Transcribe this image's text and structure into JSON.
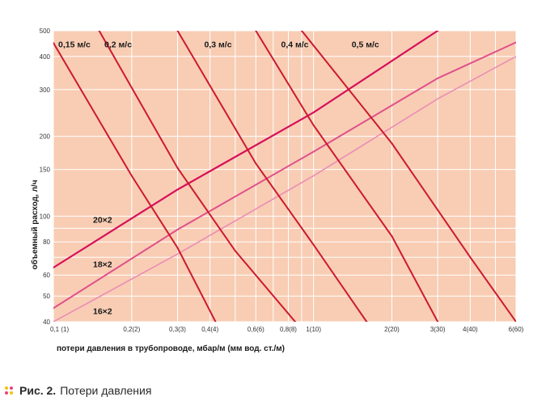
{
  "chart_data": {
    "type": "line",
    "scale": "log-log",
    "background_color": "#f8cdb4",
    "grid": true,
    "grid_color": "#ffffff",
    "xlabel": "потери давления в трубопроводе, мбар/м (мм вод. ст./м)",
    "ylabel": "объемный расход, л/ч",
    "xlim": [
      0.1,
      6
    ],
    "ylim": [
      40,
      500
    ],
    "x_ticks": [
      {
        "value": 0.1,
        "label": "0,1 (1)"
      },
      {
        "value": 0.2,
        "label": "0,2(2)"
      },
      {
        "value": 0.3,
        "label": "0,3(3)"
      },
      {
        "value": 0.4,
        "label": "0,4(4)"
      },
      {
        "value": 0.6,
        "label": "0,6(6)"
      },
      {
        "value": 0.8,
        "label": "0,8(8)"
      },
      {
        "value": 1,
        "label": "1(10)"
      },
      {
        "value": 2,
        "label": "2(20)"
      },
      {
        "value": 3,
        "label": "3(30)"
      },
      {
        "value": 4,
        "label": "4(40)"
      },
      {
        "value": 6,
        "label": "6(60)"
      }
    ],
    "x_minor_ticks": [
      0.5,
      0.7,
      0.9,
      5
    ],
    "y_ticks": [
      {
        "value": 40,
        "label": "40"
      },
      {
        "value": 50,
        "label": "50"
      },
      {
        "value": 60,
        "label": "60"
      },
      {
        "value": 80,
        "label": "80"
      },
      {
        "value": 100,
        "label": "100"
      },
      {
        "value": 150,
        "label": "150"
      },
      {
        "value": 200,
        "label": "200"
      },
      {
        "value": 300,
        "label": "300"
      },
      {
        "value": 400,
        "label": "400"
      },
      {
        "value": 500,
        "label": "500"
      }
    ],
    "y_minor_ticks": [
      70,
      90
    ],
    "series": [
      {
        "name": "20×2",
        "group": "pipe",
        "color": "#d6105a",
        "width": 2.2,
        "points": [
          [
            0.1,
            64
          ],
          [
            0.3,
            126
          ],
          [
            1,
            246
          ],
          [
            3,
            500
          ]
        ]
      },
      {
        "name": "18×2",
        "group": "pipe",
        "color": "#e0508a",
        "width": 2,
        "points": [
          [
            0.1,
            45
          ],
          [
            0.3,
            89
          ],
          [
            1,
            175
          ],
          [
            3,
            331
          ],
          [
            6,
            452
          ]
        ]
      },
      {
        "name": "16×2",
        "group": "pipe",
        "color": "#ec8cb4",
        "width": 1.6,
        "points": [
          [
            0.1,
            40
          ],
          [
            0.3,
            72
          ],
          [
            1,
            142
          ],
          [
            3,
            277
          ],
          [
            6,
            400
          ]
        ]
      },
      {
        "name": "0,15 м/с",
        "group": "velocity",
        "color": "#cc1a2e",
        "width": 2,
        "points": [
          [
            0.1,
            450
          ],
          [
            0.2,
            142
          ],
          [
            0.3,
            76
          ],
          [
            0.42,
            40
          ]
        ]
      },
      {
        "name": "0,2 м/с",
        "group": "velocity",
        "color": "#cc1a2e",
        "width": 2,
        "points": [
          [
            0.15,
            500
          ],
          [
            0.3,
            152
          ],
          [
            0.5,
            74
          ],
          [
            0.85,
            40
          ]
        ]
      },
      {
        "name": "0,3 м/с",
        "group": "velocity",
        "color": "#cc1a2e",
        "width": 2,
        "points": [
          [
            0.3,
            500
          ],
          [
            0.6,
            158
          ],
          [
            1,
            78
          ],
          [
            1.6,
            40
          ]
        ]
      },
      {
        "name": "0,4 м/с",
        "group": "velocity",
        "color": "#cc1a2e",
        "width": 2,
        "points": [
          [
            0.6,
            500
          ],
          [
            1,
            220
          ],
          [
            2,
            84
          ],
          [
            3,
            40
          ]
        ]
      },
      {
        "name": "0,5 м/с",
        "group": "velocity",
        "color": "#cc1a2e",
        "width": 2,
        "points": [
          [
            0.9,
            500
          ],
          [
            2,
            188
          ],
          [
            4,
            70
          ],
          [
            6,
            40
          ]
        ]
      }
    ],
    "annotations": [
      {
        "text": "0,15 м/с",
        "x": 0.1,
        "y": 445,
        "anchor": "start"
      },
      {
        "text": "0,2 м/с",
        "x": 0.157,
        "y": 445,
        "anchor": "start"
      },
      {
        "text": "0,3 м/с",
        "x": 0.38,
        "y": 445,
        "anchor": "start"
      },
      {
        "text": "0,4 м/с",
        "x": 0.75,
        "y": 445,
        "anchor": "start"
      },
      {
        "text": "0,5 м/с",
        "x": 1.4,
        "y": 445,
        "anchor": "start"
      },
      {
        "text": "20×2",
        "x": 0.142,
        "y": 97,
        "anchor": "start"
      },
      {
        "text": "18×2",
        "x": 0.142,
        "y": 66,
        "anchor": "start"
      },
      {
        "text": "16×2",
        "x": 0.142,
        "y": 44,
        "anchor": "start"
      }
    ]
  },
  "caption": {
    "label": "Рис. 2.",
    "text": "Потери давления",
    "dot_colors": [
      "#f5c200",
      "#e8447c",
      "#e8447c",
      "#f5c200"
    ]
  }
}
